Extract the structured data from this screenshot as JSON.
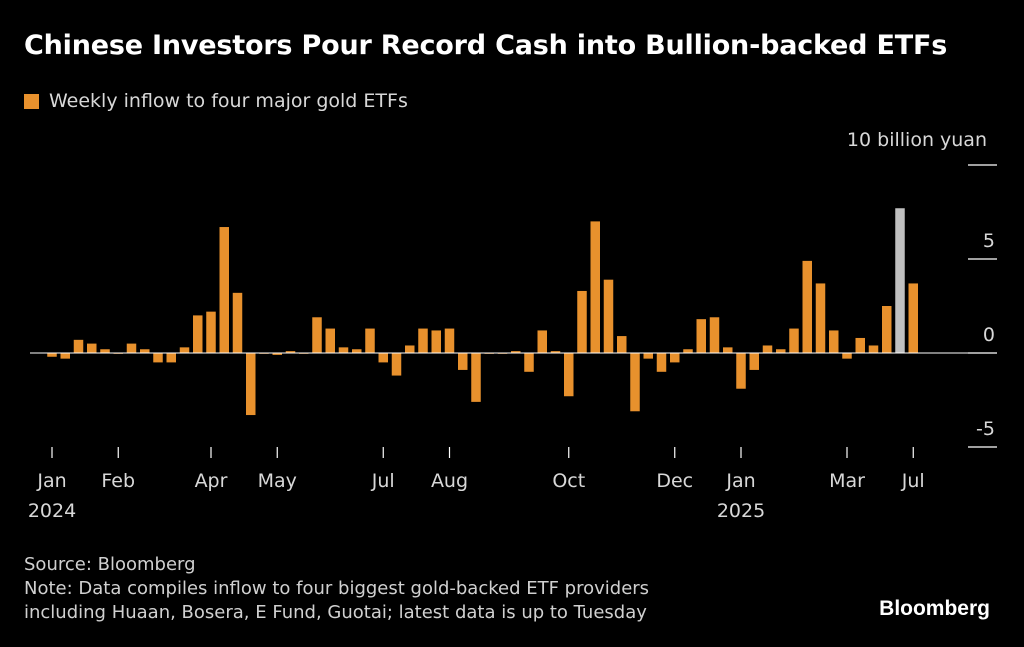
{
  "title": "Chinese Investors Pour Record Cash into Bullion-backed ETFs",
  "legend": {
    "label": "Weekly inflow to four major gold ETFs",
    "color": "#e8912d"
  },
  "source": "Source: Bloomberg",
  "note_line1": "Note: Data compiles inflow to four biggest gold-backed ETF providers",
  "note_line2": "including Huaan, Bosera, E Fund, Guotai; latest data is up to Tuesday",
  "brand": "Bloomberg",
  "colors": {
    "bar": "#e8912d",
    "highlight": "#c0c0c0",
    "axis": "#ffffff",
    "background": "#000000"
  },
  "chart_data": {
    "type": "bar",
    "unit_label": "10 billion yuan",
    "ylim": [
      -5,
      10
    ],
    "y_ticks": [
      10,
      5,
      0,
      -5
    ],
    "y_tick_labels": [
      "",
      "5",
      "0",
      "-5"
    ],
    "x_ticks": [
      {
        "label": "Jan",
        "sub": "2024",
        "week": 0
      },
      {
        "label": "Feb",
        "sub": "",
        "week": 5
      },
      {
        "label": "Apr",
        "sub": "",
        "week": 12
      },
      {
        "label": "May",
        "sub": "",
        "week": 17
      },
      {
        "label": "Jul",
        "sub": "",
        "week": 25
      },
      {
        "label": "Aug",
        "sub": "",
        "week": 30
      },
      {
        "label": "Oct",
        "sub": "",
        "week": 39
      },
      {
        "label": "Dec",
        "sub": "",
        "week": 47
      },
      {
        "label": "Jan",
        "sub": "2025",
        "week": 52
      },
      {
        "label": "Mar",
        "sub": "",
        "week": 60
      },
      {
        "label": "Jul",
        "sub": "",
        "week": 65
      }
    ],
    "highlight_index": 64,
    "values": [
      -0.2,
      -0.3,
      0.7,
      0.5,
      0.2,
      0.0,
      0.5,
      0.2,
      -0.5,
      -0.5,
      0.3,
      2.0,
      2.2,
      6.7,
      3.2,
      -3.3,
      0.0,
      -0.1,
      0.1,
      0.0,
      1.9,
      1.3,
      0.3,
      0.2,
      1.3,
      -0.5,
      -1.2,
      0.4,
      1.3,
      1.2,
      1.3,
      -0.9,
      -2.6,
      0.0,
      0.0,
      0.1,
      -1.0,
      1.2,
      0.1,
      -2.3,
      3.3,
      7.0,
      3.9,
      0.9,
      -3.1,
      -0.3,
      -1.0,
      -0.5,
      0.2,
      1.8,
      1.9,
      0.3,
      -1.9,
      -0.9,
      0.4,
      0.2,
      1.3,
      4.9,
      3.7,
      1.2,
      -0.3,
      0.8,
      0.4,
      2.5,
      7.7,
      3.7
    ]
  }
}
